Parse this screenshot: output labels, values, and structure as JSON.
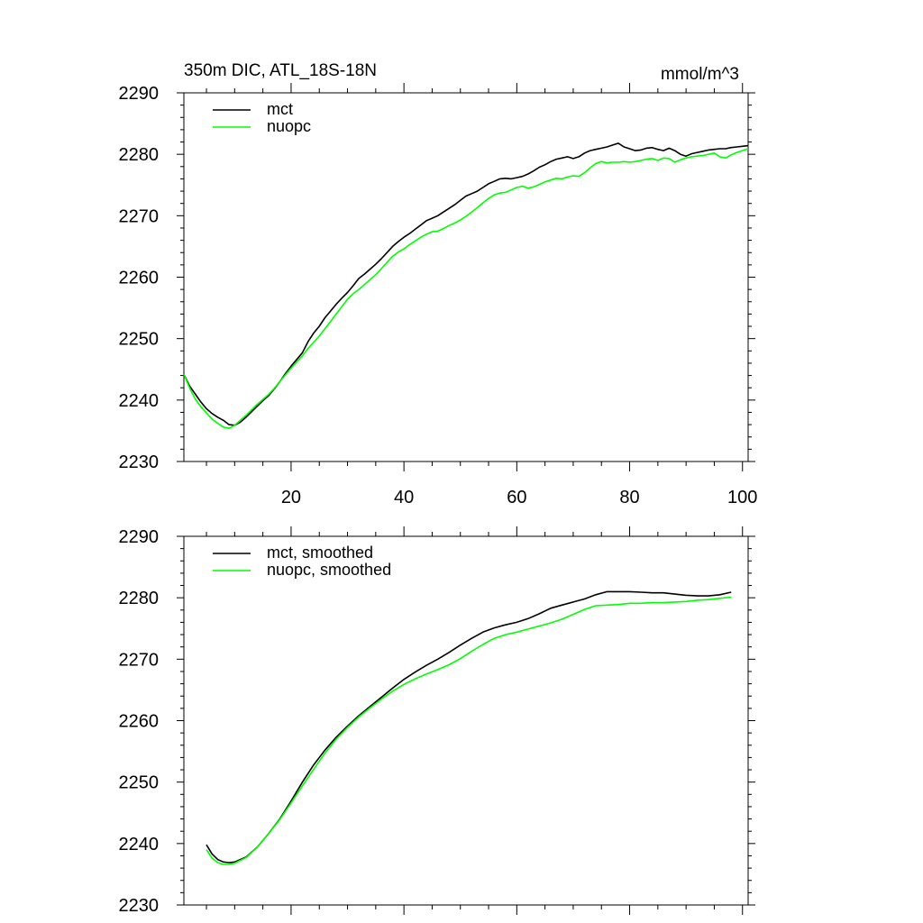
{
  "chart_data": [
    {
      "type": "line",
      "title": "350m DIC, ATL_18S-18N",
      "units": "mmol/m^3",
      "xlim": [
        1,
        101
      ],
      "ylim": [
        2230,
        2290
      ],
      "xticks": [
        20,
        40,
        60,
        80,
        100
      ],
      "yticks": [
        2230,
        2240,
        2250,
        2260,
        2270,
        2280,
        2290
      ],
      "xtick_labels": [
        "20",
        "40",
        "60",
        "80",
        "100"
      ],
      "ytick_labels": [
        "2230",
        "2240",
        "2250",
        "2260",
        "2270",
        "2280",
        "2290"
      ],
      "legend_position": "top-left",
      "series": [
        {
          "name": "mct",
          "color": "#000000",
          "x": [
            1,
            2,
            3,
            4,
            5,
            6,
            7,
            8,
            9,
            10,
            11,
            12,
            13,
            14,
            15,
            16,
            17,
            18,
            19,
            20,
            21,
            22,
            23,
            24,
            25,
            26,
            27,
            28,
            29,
            30,
            31,
            32,
            33,
            34,
            35,
            36,
            37,
            38,
            39,
            40,
            41,
            42,
            43,
            44,
            45,
            46,
            47,
            48,
            49,
            50,
            51,
            52,
            53,
            54,
            55,
            56,
            57,
            58,
            59,
            60,
            61,
            62,
            63,
            64,
            65,
            66,
            67,
            68,
            69,
            70,
            71,
            72,
            73,
            74,
            75,
            76,
            77,
            78,
            79,
            80,
            81,
            82,
            83,
            84,
            85,
            86,
            87,
            88,
            89,
            90,
            91,
            92,
            93,
            94,
            95,
            96,
            97,
            98,
            99,
            100,
            101
          ],
          "y": [
            2244.2,
            2242.3,
            2241.0,
            2239.7,
            2238.6,
            2237.8,
            2237.2,
            2236.7,
            2236.0,
            2235.9,
            2236.4,
            2237.2,
            2238.1,
            2239.0,
            2239.9,
            2240.7,
            2241.8,
            2243.0,
            2244.3,
            2245.5,
            2246.6,
            2247.7,
            2249.5,
            2250.9,
            2252.0,
            2253.4,
            2254.5,
            2255.6,
            2256.6,
            2257.5,
            2258.6,
            2259.8,
            2260.5,
            2261.3,
            2262.1,
            2263.0,
            2264.0,
            2265.0,
            2265.8,
            2266.5,
            2267.1,
            2267.8,
            2268.5,
            2269.2,
            2269.6,
            2270.0,
            2270.6,
            2271.2,
            2271.8,
            2272.5,
            2273.2,
            2273.6,
            2274.0,
            2274.6,
            2275.2,
            2275.6,
            2276.0,
            2276.1,
            2276.0,
            2276.2,
            2276.4,
            2276.8,
            2277.3,
            2277.9,
            2278.3,
            2278.8,
            2279.2,
            2279.4,
            2279.6,
            2279.3,
            2279.6,
            2280.2,
            2280.6,
            2280.8,
            2281.0,
            2281.2,
            2281.5,
            2281.8,
            2281.2,
            2280.9,
            2280.6,
            2280.7,
            2281.0,
            2281.1,
            2280.8,
            2280.6,
            2281.0,
            2280.6,
            2280.0,
            2279.7,
            2280.1,
            2280.3,
            2280.5,
            2280.7,
            2280.8,
            2280.9,
            2280.9,
            2281.1,
            2281.2,
            2281.3,
            2281.4
          ]
        },
        {
          "name": "nuopc",
          "color": "#00ff00",
          "x": [
            1,
            2,
            3,
            4,
            5,
            6,
            7,
            8,
            9,
            10,
            11,
            12,
            13,
            14,
            15,
            16,
            17,
            18,
            19,
            20,
            21,
            22,
            23,
            24,
            25,
            26,
            27,
            28,
            29,
            30,
            31,
            32,
            33,
            34,
            35,
            36,
            37,
            38,
            39,
            40,
            41,
            42,
            43,
            44,
            45,
            46,
            47,
            48,
            49,
            50,
            51,
            52,
            53,
            54,
            55,
            56,
            57,
            58,
            59,
            60,
            61,
            62,
            63,
            64,
            65,
            66,
            67,
            68,
            69,
            70,
            71,
            72,
            73,
            74,
            75,
            76,
            77,
            78,
            79,
            80,
            81,
            82,
            83,
            84,
            85,
            86,
            87,
            88,
            89,
            90,
            91,
            92,
            93,
            94,
            95,
            96,
            97,
            98,
            99,
            100,
            101
          ],
          "y": [
            2244.2,
            2242.0,
            2240.2,
            2238.9,
            2237.9,
            2236.9,
            2236.2,
            2235.6,
            2235.4,
            2235.9,
            2236.7,
            2237.5,
            2238.4,
            2239.3,
            2240.1,
            2240.9,
            2241.9,
            2243.0,
            2244.1,
            2245.2,
            2246.2,
            2247.2,
            2248.4,
            2249.4,
            2250.4,
            2251.6,
            2252.8,
            2254.0,
            2255.2,
            2256.4,
            2257.3,
            2258.0,
            2258.8,
            2259.6,
            2260.4,
            2261.4,
            2262.4,
            2263.4,
            2264.1,
            2264.6,
            2265.3,
            2265.9,
            2266.5,
            2267.0,
            2267.4,
            2267.5,
            2267.9,
            2268.4,
            2268.8,
            2269.3,
            2269.9,
            2270.6,
            2271.3,
            2272.1,
            2272.8,
            2273.4,
            2273.7,
            2273.8,
            2274.2,
            2274.6,
            2274.8,
            2274.5,
            2274.7,
            2275.1,
            2275.5,
            2275.8,
            2276.1,
            2276.0,
            2276.3,
            2276.5,
            2276.4,
            2277.0,
            2277.8,
            2278.5,
            2278.8,
            2278.6,
            2278.7,
            2278.7,
            2278.8,
            2278.7,
            2278.8,
            2279.0,
            2279.2,
            2279.3,
            2279.0,
            2279.4,
            2279.3,
            2278.7,
            2279.1,
            2279.4,
            2279.6,
            2279.7,
            2279.8,
            2280.0,
            2280.2,
            2279.6,
            2279.4,
            2279.9,
            2280.3,
            2280.6,
            2280.9
          ]
        }
      ]
    },
    {
      "type": "line",
      "title": "",
      "units": "",
      "xlim": [
        1,
        101
      ],
      "ylim": [
        2230,
        2290
      ],
      "xticks": [
        20,
        40,
        60,
        80,
        100
      ],
      "yticks": [
        2230,
        2240,
        2250,
        2260,
        2270,
        2280,
        2290
      ],
      "ytick_labels": [
        "2230",
        "2240",
        "2250",
        "2260",
        "2270",
        "2280",
        "2290"
      ],
      "legend_position": "top-left",
      "series": [
        {
          "name": "mct, smoothed",
          "color": "#000000",
          "x": [
            5,
            6,
            7,
            8,
            9,
            10,
            12,
            14,
            16,
            18,
            20,
            22,
            24,
            26,
            28,
            30,
            32,
            34,
            36,
            38,
            40,
            42,
            44,
            46,
            48,
            50,
            52,
            54,
            56,
            58,
            60,
            62,
            64,
            66,
            68,
            70,
            72,
            74,
            76,
            78,
            80,
            82,
            84,
            86,
            88,
            90,
            92,
            94,
            96,
            98
          ],
          "y": [
            2239.8,
            2238.3,
            2237.4,
            2237.0,
            2236.9,
            2237.0,
            2237.8,
            2239.4,
            2241.6,
            2244.0,
            2246.9,
            2250.0,
            2252.8,
            2255.2,
            2257.3,
            2259.1,
            2260.8,
            2262.3,
            2263.8,
            2265.3,
            2266.7,
            2267.9,
            2269.0,
            2270.0,
            2271.1,
            2272.3,
            2273.4,
            2274.4,
            2275.1,
            2275.6,
            2276.0,
            2276.6,
            2277.4,
            2278.3,
            2278.8,
            2279.3,
            2279.8,
            2280.5,
            2281.0,
            2281.0,
            2281.0,
            2280.9,
            2280.8,
            2280.8,
            2280.6,
            2280.4,
            2280.3,
            2280.3,
            2280.5,
            2280.9
          ]
        },
        {
          "name": "nuopc, smoothed",
          "color": "#00ff00",
          "x": [
            5,
            6,
            7,
            8,
            9,
            10,
            12,
            14,
            16,
            18,
            20,
            22,
            24,
            26,
            28,
            30,
            32,
            34,
            36,
            38,
            40,
            42,
            44,
            46,
            48,
            50,
            52,
            54,
            56,
            58,
            60,
            62,
            64,
            66,
            68,
            70,
            72,
            74,
            76,
            78,
            80,
            82,
            84,
            86,
            88,
            90,
            92,
            94,
            96,
            98
          ],
          "y": [
            2239.0,
            2237.6,
            2236.9,
            2236.6,
            2236.6,
            2236.8,
            2237.7,
            2239.4,
            2241.6,
            2243.9,
            2246.6,
            2249.4,
            2252.1,
            2254.7,
            2257.0,
            2258.9,
            2260.6,
            2262.1,
            2263.5,
            2264.8,
            2265.9,
            2266.8,
            2267.6,
            2268.3,
            2269.1,
            2270.1,
            2271.3,
            2272.4,
            2273.4,
            2274.0,
            2274.4,
            2274.9,
            2275.4,
            2275.9,
            2276.5,
            2277.3,
            2278.1,
            2278.7,
            2278.8,
            2278.9,
            2279.1,
            2279.1,
            2279.2,
            2279.2,
            2279.3,
            2279.4,
            2279.6,
            2279.7,
            2279.9,
            2280.1
          ]
        }
      ]
    }
  ]
}
